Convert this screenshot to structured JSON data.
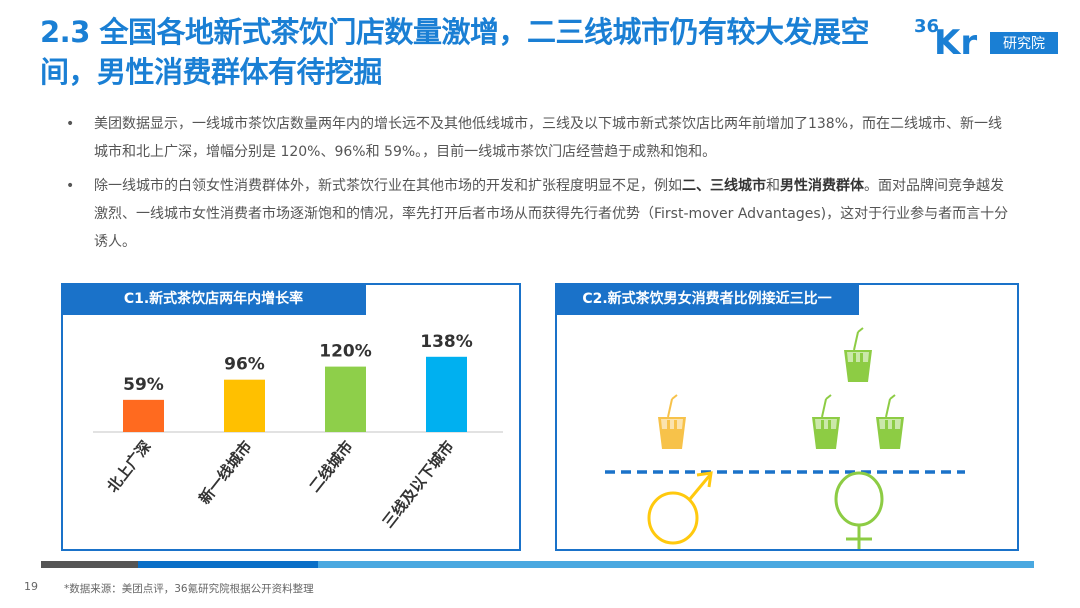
{
  "title": "2.3 全国各地新式茶饮门店数量激增，二三线城市仍有较大发展空间，男性消费群体有待挖掘",
  "logo": {
    "text": "36Kr",
    "badge": "研究院"
  },
  "bullets": [
    {
      "parts": [
        {
          "text": "美团数据显示，一线城市茶饮店数量两年内的增长远不及其他低线城市，三线及以下城市新式茶饮店比两年前增加了138%，而在二线城市、新一线城市和北上广深，增幅分别是 120%、96%和 59%。，目前一线城市茶饮门店经营趋于成熟和饱和。"
        }
      ]
    },
    {
      "parts": [
        {
          "text": "除一线城市的白领女性消费群体外，新式茶饮行业在其他市场的开发和扩张程度明显不足，例如"
        },
        {
          "text": "二、三线城市",
          "bold": true
        },
        {
          "text": "和"
        },
        {
          "text": "男性消费群体",
          "bold": true
        },
        {
          "text": "。面对品牌间竞争越发激烈、一线城市女性消费者市场逐渐饱和的情况，率先打开后者市场从而获得先行者优势（First-mover Advantages)，这对于行业参与者而言十分诱人。"
        }
      ]
    }
  ],
  "panel1": {
    "title": "C1.新式茶饮店两年内增长率"
  },
  "panel2": {
    "title": "C2.新式茶饮男女消费者比例接近三比一",
    "male_cups": 1,
    "female_cups": 3,
    "male_color": "#f7c24a",
    "female_color": "#8dcc44"
  },
  "chart_data": {
    "type": "bar",
    "title": "C1.新式茶饮店两年内增长率",
    "categories": [
      "北上广深",
      "新一线城市",
      "二线城市",
      "三线及以下城市"
    ],
    "values": [
      59,
      96,
      120,
      138
    ],
    "labels": [
      "59%",
      "96%",
      "120%",
      "138%"
    ],
    "colors": [
      "#ff6a1f",
      "#ffc000",
      "#8ecf4a",
      "#00b0f0"
    ],
    "ylim": [
      0,
      150
    ],
    "grid": false,
    "legend": "none"
  },
  "footer": {
    "page": "19",
    "source": "*数据来源：美团点评，36氪研究院根据公开资料整理"
  },
  "colors": {
    "accent": "#1a7fd4",
    "panel": "#1a72c9"
  }
}
